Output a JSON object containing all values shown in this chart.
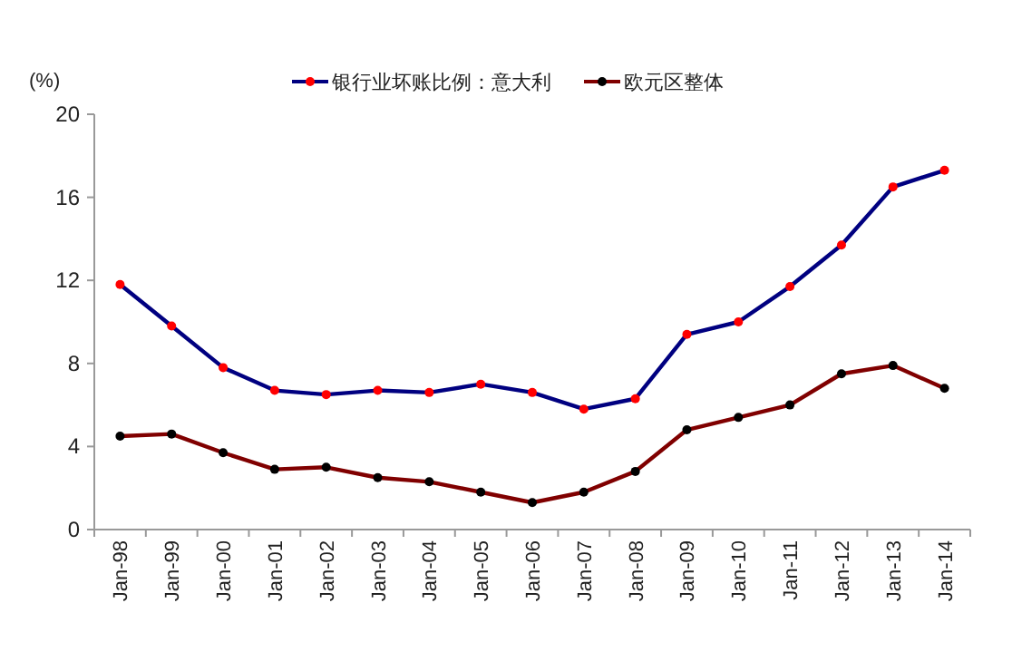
{
  "chart_data": {
    "type": "line",
    "ylabel": "(%)",
    "categories": [
      "Jan-98",
      "Jan-99",
      "Jan-00",
      "Jan-01",
      "Jan-02",
      "Jan-03",
      "Jan-04",
      "Jan-05",
      "Jan-06",
      "Jan-07",
      "Jan-08",
      "Jan-09",
      "Jan-10",
      "Jan-11",
      "Jan-12",
      "Jan-13",
      "Jan-14"
    ],
    "series": [
      {
        "name": "银行业坏账比例：意大利",
        "color": "#000080",
        "colors": [
          "#ff0000",
          "#ff0000",
          "#ff0000",
          "#ff0000",
          "#ff0000",
          "#ff0000",
          "#ff0000",
          "#ff0000",
          "#ff0000",
          "#ff0000",
          "#ff0000",
          "#ff0000",
          "#ff0000",
          "#ff0000",
          "#ff0000",
          "#ff0000",
          "#ff0000"
        ],
        "values": [
          11.8,
          9.8,
          7.8,
          6.7,
          6.5,
          6.7,
          6.6,
          7.0,
          6.6,
          5.8,
          6.3,
          9.4,
          10.0,
          11.7,
          13.7,
          16.5,
          17.3
        ]
      },
      {
        "name": "欧元区整体",
        "color": "#800000",
        "colors": [
          "#000000",
          "#000000",
          "#000000",
          "#000000",
          "#000000",
          "#000000",
          "#000000",
          "#000000",
          "#000000",
          "#000000",
          "#000000",
          "#000000",
          "#000000",
          "#000000",
          "#000000",
          "#000000",
          "#000000"
        ],
        "values": [
          4.5,
          4.6,
          3.7,
          2.9,
          3.0,
          2.5,
          2.3,
          1.8,
          1.3,
          1.8,
          2.8,
          4.8,
          5.4,
          6.0,
          7.5,
          7.9,
          6.8
        ]
      }
    ],
    "ylim": [
      0,
      20
    ],
    "yticks": [
      0,
      4,
      8,
      12,
      16,
      20
    ],
    "legend": "top",
    "marker": "circle",
    "line_style": "solid",
    "grid": false
  }
}
